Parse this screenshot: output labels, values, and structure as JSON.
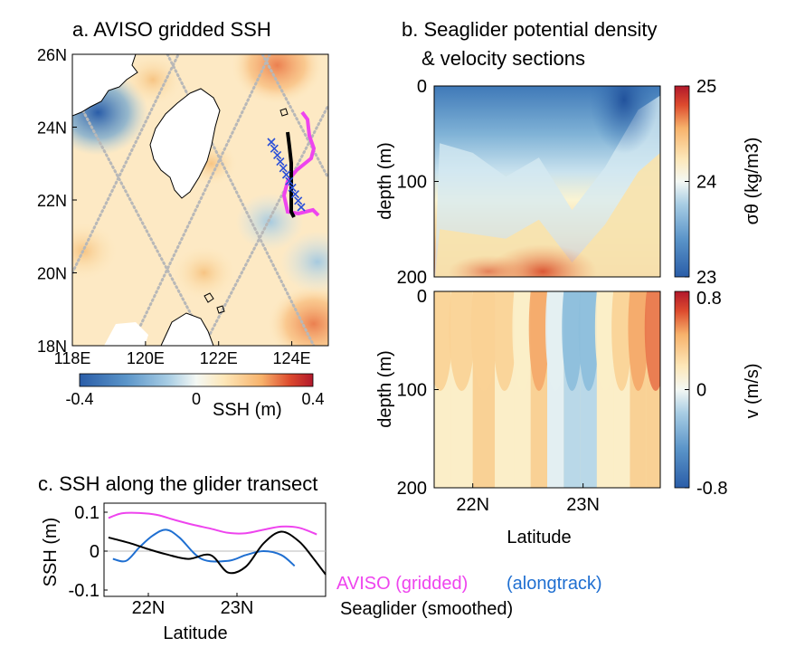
{
  "colors": {
    "aviso": "#ee44ee",
    "alongtrack": "#1f6fd1",
    "seaglider": "#000000",
    "land": "#ffffff",
    "track_dots": "#b8b8b8",
    "glider_cross": "#2a4fd8"
  },
  "panels": {
    "a": {
      "title": "a. AVISO gridded SSH"
    },
    "b": {
      "title_line1": "b. Seaglider potential density",
      "title_line2": "& velocity sections"
    },
    "c": {
      "title": "c. SSH along the glider transect"
    }
  },
  "legend": {
    "aviso": "AVISO (gridded)",
    "alongtrack": "(alongtrack)",
    "seaglider": "Seaglider (smoothed)"
  },
  "chart_data": [
    {
      "id": "map",
      "type": "heatmap",
      "title": "a. AVISO gridded SSH",
      "x_ticks": [
        "118E",
        "120E",
        "122E",
        "124E"
      ],
      "x_tick_values": [
        118,
        120,
        122,
        124
      ],
      "y_ticks": [
        "26N",
        "24N",
        "22N",
        "20N",
        "18N"
      ],
      "y_tick_values": [
        26,
        24,
        22,
        20,
        18
      ],
      "xlim": [
        118,
        125
      ],
      "ylim": [
        18,
        26
      ],
      "colorbar": {
        "label": "SSH (m)",
        "ticks": [
          "-0.4",
          "0",
          "0.4"
        ],
        "tick_values": [
          -0.4,
          0,
          0.4
        ],
        "range": [
          -0.4,
          0.4
        ],
        "colors": [
          "#2a5da8",
          "#5b95c9",
          "#a8cde4",
          "#eef6f8",
          "#fde7b8",
          "#f7b26b",
          "#dd4b2e",
          "#b2182b"
        ]
      },
      "features": {
        "eddies": [
          {
            "lon": 118.7,
            "lat": 24.4,
            "ssh": -0.35
          },
          {
            "lon": 118.3,
            "lat": 20.6,
            "ssh": 0.15
          },
          {
            "lon": 120.2,
            "lat": 25.3,
            "ssh": 0.1
          },
          {
            "lon": 121.6,
            "lat": 20.0,
            "ssh": 0.12
          },
          {
            "lon": 123.6,
            "lat": 25.7,
            "ssh": 0.3
          },
          {
            "lon": 123.4,
            "lat": 21.4,
            "ssh": -0.15
          },
          {
            "lon": 124.6,
            "lat": 18.6,
            "ssh": 0.3
          },
          {
            "lon": 124.7,
            "lat": 20.3,
            "ssh": -0.18
          },
          {
            "lon": 121.8,
            "lat": 23.0,
            "ssh": 0.05
          }
        ]
      }
    },
    {
      "id": "density",
      "type": "heatmap",
      "x_label": "",
      "y_label": "depth (m)",
      "y_ticks": [
        "0",
        "100",
        "200"
      ],
      "y_tick_values": [
        0,
        100,
        200
      ],
      "ylim": [
        200,
        0
      ],
      "xlim": [
        21.65,
        23.7
      ],
      "colorbar": {
        "label": "σθ (kg/m3)",
        "ticks": [
          "25",
          "24",
          "23"
        ],
        "tick_values": [
          25,
          24,
          23
        ],
        "range": [
          23,
          25
        ]
      },
      "latitudes": [
        21.7,
        22.0,
        22.3,
        22.6,
        22.9,
        23.2,
        23.5,
        23.7
      ],
      "isopycnal_depth_23_5": [
        60,
        70,
        95,
        75,
        130,
        85,
        25,
        10
      ],
      "isopycnal_depth_24_0": [
        150,
        155,
        160,
        140,
        185,
        145,
        90,
        70
      ]
    },
    {
      "id": "velocity",
      "type": "heatmap",
      "x_label": "Latitude",
      "x_ticks": [
        "22N",
        "23N"
      ],
      "x_tick_values": [
        22,
        23
      ],
      "y_label": "depth (m)",
      "y_ticks": [
        "0",
        "100",
        "200"
      ],
      "y_tick_values": [
        0,
        100,
        200
      ],
      "ylim": [
        200,
        0
      ],
      "colorbar": {
        "label": "v (m/s)",
        "ticks": [
          "0.8",
          "0",
          "-0.8"
        ],
        "tick_values": [
          0.8,
          0,
          -0.8
        ],
        "range": [
          -0.8,
          0.8
        ]
      },
      "latitudes": [
        21.7,
        21.9,
        22.1,
        22.3,
        22.45,
        22.6,
        22.75,
        22.9,
        23.05,
        23.2,
        23.35,
        23.5,
        23.65
      ],
      "surface_v": [
        0.15,
        0.2,
        0.25,
        0.15,
        0.1,
        0.35,
        -0.05,
        -0.3,
        -0.35,
        0.05,
        0.15,
        0.35,
        0.5
      ]
    },
    {
      "id": "ssh_transect",
      "type": "line",
      "title": "c. SSH along the glider transect",
      "x_label": "Latitude",
      "x_ticks": [
        "22N",
        "23N"
      ],
      "x_tick_values": [
        22,
        23
      ],
      "xlim": [
        21.5,
        24.0
      ],
      "y_label": "SSH (m)",
      "y_ticks": [
        "0.1",
        "0",
        "-0.1"
      ],
      "y_tick_values": [
        0.1,
        0,
        -0.1
      ],
      "ylim": [
        -0.1,
        0.1
      ],
      "series": [
        {
          "name": "AVISO (gridded)",
          "x": [
            21.55,
            21.7,
            21.9,
            22.1,
            22.3,
            22.5,
            22.7,
            22.9,
            23.1,
            23.3,
            23.5,
            23.7,
            23.9
          ],
          "y": [
            0.085,
            0.097,
            0.098,
            0.093,
            0.08,
            0.068,
            0.058,
            0.047,
            0.046,
            0.055,
            0.063,
            0.06,
            0.043
          ]
        },
        {
          "name": "(alongtrack)",
          "x": [
            21.6,
            21.75,
            21.9,
            22.05,
            22.2,
            22.35,
            22.6,
            22.9,
            23.1,
            23.3,
            23.5,
            23.65
          ],
          "y": [
            -0.02,
            -0.025,
            0.01,
            0.04,
            0.055,
            0.035,
            -0.02,
            -0.025,
            -0.01,
            0.0,
            -0.01,
            -0.038
          ]
        },
        {
          "name": "Seaglider (smoothed)",
          "x": [
            21.55,
            21.8,
            22.0,
            22.2,
            22.45,
            22.7,
            22.9,
            23.1,
            23.3,
            23.5,
            23.7,
            23.85,
            24.0
          ],
          "y": [
            0.035,
            0.02,
            0.005,
            -0.008,
            -0.02,
            -0.01,
            -0.055,
            -0.04,
            0.02,
            0.05,
            0.025,
            -0.015,
            -0.06
          ]
        }
      ],
      "zero_line": true
    }
  ]
}
